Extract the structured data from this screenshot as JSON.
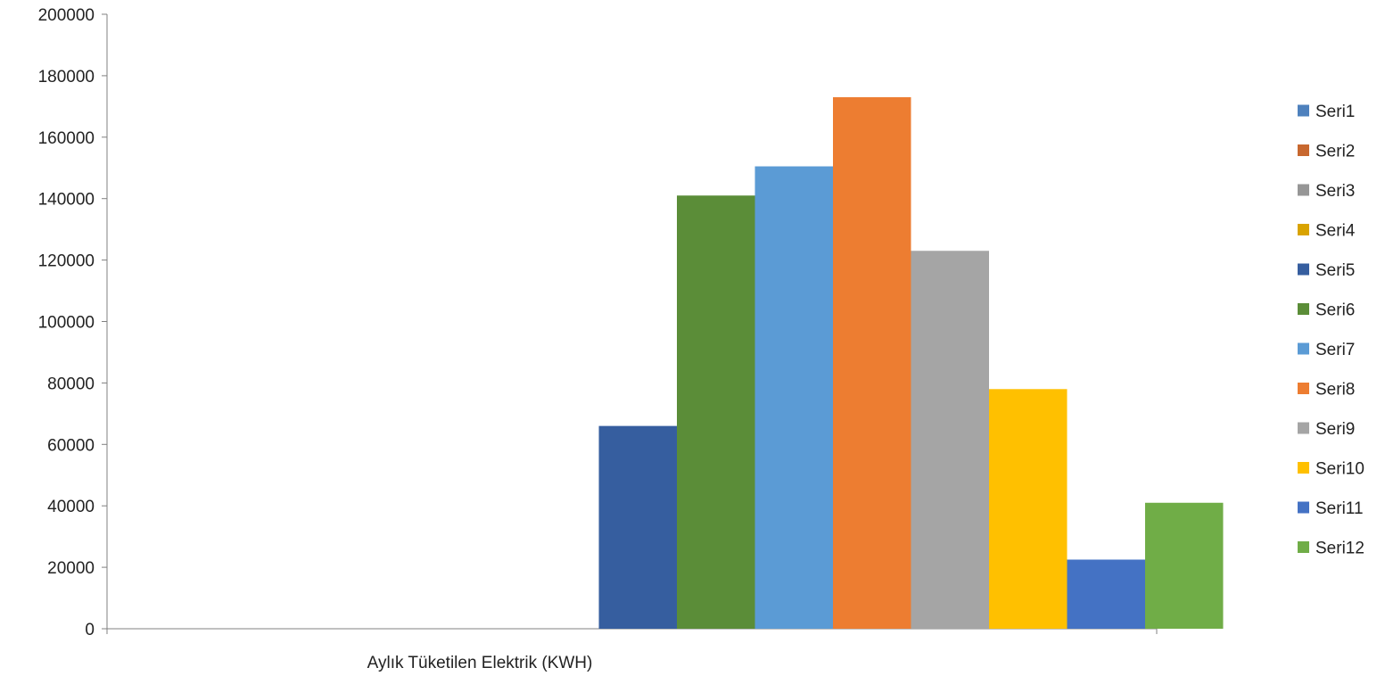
{
  "chart_data": {
    "type": "bar",
    "title": "",
    "xlabel": "",
    "ylabel": "",
    "categories": [
      "Aylık Tüketilen Elektrik (KWH)"
    ],
    "ylim": [
      0,
      200000
    ],
    "yticks": [
      0,
      20000,
      40000,
      60000,
      80000,
      100000,
      120000,
      140000,
      160000,
      180000,
      200000
    ],
    "grid": false,
    "legend_position": "right",
    "series": [
      {
        "name": "Seri1",
        "values": [
          0
        ],
        "color": "#4E81BD"
      },
      {
        "name": "Seri2",
        "values": [
          0
        ],
        "color": "#C8682F"
      },
      {
        "name": "Seri3",
        "values": [
          0
        ],
        "color": "#969696"
      },
      {
        "name": "Seri4",
        "values": [
          0
        ],
        "color": "#D9A300"
      },
      {
        "name": "Seri5",
        "values": [
          66000
        ],
        "color": "#365E9F"
      },
      {
        "name": "Seri6",
        "values": [
          141000
        ],
        "color": "#5B8D38"
      },
      {
        "name": "Seri7",
        "values": [
          150500
        ],
        "color": "#5B9BD5"
      },
      {
        "name": "Seri8",
        "values": [
          173000
        ],
        "color": "#ED7D31"
      },
      {
        "name": "Seri9",
        "values": [
          123000
        ],
        "color": "#A5A5A5"
      },
      {
        "name": "Seri10",
        "values": [
          78000
        ],
        "color": "#FFC000"
      },
      {
        "name": "Seri11",
        "values": [
          22500
        ],
        "color": "#4472C4"
      },
      {
        "name": "Seri12",
        "values": [
          41000
        ],
        "color": "#70AD47"
      }
    ]
  }
}
